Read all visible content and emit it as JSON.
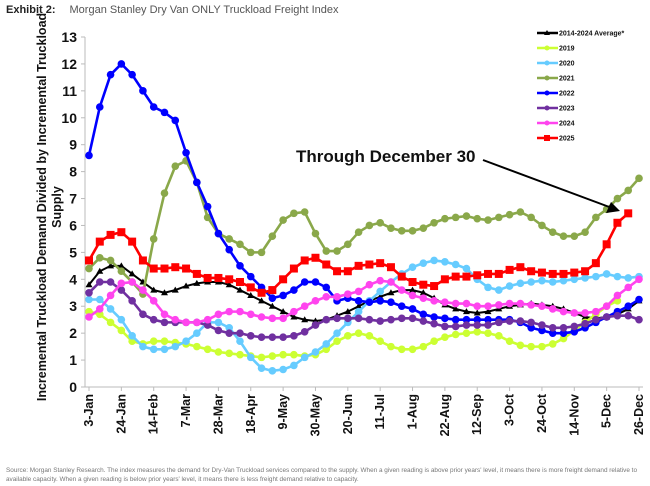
{
  "header": {
    "exhibit": "Exhibit 2:",
    "title": "Morgan Stanley Dry Van ONLY Truckload Freight Index"
  },
  "footer": {
    "source": "Source: Morgan Stanley Research. The index measures the demand for Dry-Van Truckload services compared to the supply. When a given reading is above prior years' level, it means there is more freight demand relative to available capacity. When a given reading is below prior years' level, it means there is less freight demand relative to capacity."
  },
  "chart_data": {
    "type": "line",
    "title": "Morgan Stanley Dry Van ONLY Truckload Freight Index",
    "xlabel": "",
    "ylabel": "Incremental Truckload Demand Divided by Incremental Truckload Supply",
    "ylim": [
      0,
      13
    ],
    "yticks": [
      "0",
      "1",
      "2",
      "3",
      "4",
      "5",
      "6",
      "7",
      "8",
      "9",
      "10",
      "11",
      "12",
      "13"
    ],
    "xticks": [
      "3-Jan",
      "24-Jan",
      "14-Feb",
      "7-Mar",
      "28-Mar",
      "18-Apr",
      "9-May",
      "30-May",
      "20-Jun",
      "11-Jul",
      "1-Aug",
      "22-Aug",
      "12-Sep",
      "3-Oct",
      "24-Oct",
      "14-Nov",
      "5-Dec",
      "26-Dec"
    ],
    "weeks": 52,
    "grid": false,
    "legend_position": "top-right",
    "annotation": "Through December 30",
    "series": [
      {
        "name": "2014-2024 Average*",
        "color": "#000000",
        "marker": "triangle",
        "values": [
          3.8,
          4.3,
          4.5,
          4.5,
          4.2,
          3.9,
          3.6,
          3.5,
          3.6,
          3.75,
          3.85,
          3.9,
          3.9,
          3.8,
          3.6,
          3.4,
          3.2,
          3.0,
          2.8,
          2.6,
          2.5,
          2.45,
          2.5,
          2.65,
          2.8,
          3.0,
          3.2,
          3.35,
          3.5,
          3.6,
          3.6,
          3.5,
          3.3,
          3.05,
          2.9,
          2.8,
          2.75,
          2.8,
          2.9,
          3.0,
          3.05,
          3.1,
          3.05,
          3.0,
          2.9,
          2.75,
          2.6,
          2.55,
          2.6,
          2.7,
          2.9,
          3.2,
          3.4,
          3.6,
          3.75
        ]
      },
      {
        "name": "2019",
        "color": "#ccff33",
        "marker": "circle",
        "values": [
          2.8,
          2.7,
          2.4,
          2.1,
          1.7,
          1.6,
          1.7,
          1.7,
          1.65,
          1.6,
          1.5,
          1.4,
          1.3,
          1.25,
          1.2,
          1.15,
          1.1,
          1.15,
          1.2,
          1.2,
          1.15,
          1.2,
          1.4,
          1.7,
          1.9,
          2.0,
          1.9,
          1.7,
          1.5,
          1.4,
          1.4,
          1.5,
          1.7,
          1.85,
          1.95,
          2.0,
          2.05,
          2.0,
          1.9,
          1.7,
          1.55,
          1.5,
          1.5,
          1.6,
          1.8,
          2.1,
          2.4,
          2.7,
          3.0,
          3.2
        ]
      },
      {
        "name": "2020",
        "color": "#66ccff",
        "marker": "circle",
        "values": [
          3.25,
          3.25,
          2.9,
          2.5,
          1.9,
          1.5,
          1.4,
          1.4,
          1.5,
          1.7,
          2.0,
          2.4,
          2.4,
          2.2,
          1.7,
          1.1,
          0.7,
          0.6,
          0.65,
          0.8,
          1.1,
          1.3,
          1.6,
          2.0,
          2.4,
          2.8,
          3.2,
          3.55,
          3.9,
          4.2,
          4.45,
          4.6,
          4.7,
          4.65,
          4.55,
          4.4,
          4.0,
          3.7,
          3.6,
          3.75,
          3.85,
          3.9,
          3.95,
          3.9,
          3.95,
          4.0,
          4.05,
          4.1,
          4.2,
          4.1,
          4.05,
          4.1
        ]
      },
      {
        "name": "2021",
        "color": "#8aa84a",
        "marker": "circle",
        "values": [
          4.4,
          4.8,
          4.7,
          4.3,
          3.9,
          3.45,
          5.5,
          7.2,
          8.2,
          8.4,
          7.6,
          6.3,
          5.7,
          5.5,
          5.3,
          5.0,
          5.0,
          5.6,
          6.2,
          6.45,
          6.5,
          5.7,
          5.05,
          5.05,
          5.3,
          5.75,
          6.0,
          6.1,
          5.9,
          5.8,
          5.8,
          5.9,
          6.1,
          6.25,
          6.3,
          6.35,
          6.25,
          6.2,
          6.3,
          6.4,
          6.5,
          6.3,
          6.0,
          5.75,
          5.6,
          5.6,
          5.75,
          6.3,
          6.6,
          7.0,
          7.3,
          7.75
        ]
      },
      {
        "name": "2022",
        "color": "#0000ff",
        "marker": "circle",
        "values": [
          8.6,
          10.4,
          11.6,
          12.0,
          11.6,
          11.0,
          10.4,
          10.2,
          9.9,
          8.7,
          7.6,
          6.7,
          5.7,
          5.1,
          4.5,
          4.1,
          3.7,
          3.3,
          3.4,
          3.6,
          3.9,
          3.9,
          3.7,
          3.2,
          3.3,
          3.2,
          3.15,
          3.2,
          3.15,
          3.0,
          2.9,
          2.7,
          2.6,
          2.55,
          2.5,
          2.5,
          2.5,
          2.5,
          2.5,
          2.5,
          2.4,
          2.2,
          2.1,
          2.0,
          2.0,
          2.05,
          2.2,
          2.4,
          2.6,
          2.8,
          3.0,
          3.25
        ]
      },
      {
        "name": "2023",
        "color": "#7030a0",
        "marker": "circle",
        "values": [
          3.5,
          3.9,
          3.9,
          3.6,
          3.2,
          2.7,
          2.5,
          2.4,
          2.4,
          2.4,
          2.4,
          2.3,
          2.1,
          2.0,
          2.0,
          1.9,
          1.85,
          1.85,
          1.85,
          1.9,
          2.05,
          2.3,
          2.5,
          2.55,
          2.55,
          2.55,
          2.5,
          2.45,
          2.5,
          2.55,
          2.55,
          2.45,
          2.35,
          2.25,
          2.25,
          2.3,
          2.3,
          2.3,
          2.4,
          2.45,
          2.45,
          2.4,
          2.3,
          2.2,
          2.2,
          2.25,
          2.35,
          2.5,
          2.6,
          2.65,
          2.65,
          2.5
        ]
      },
      {
        "name": "2024",
        "color": "#ff44ee",
        "marker": "circle",
        "values": [
          2.6,
          2.9,
          3.4,
          3.85,
          3.9,
          3.6,
          3.2,
          2.7,
          2.5,
          2.4,
          2.4,
          2.5,
          2.7,
          2.8,
          2.8,
          2.7,
          2.6,
          2.55,
          2.55,
          2.8,
          3.0,
          3.2,
          3.35,
          3.35,
          3.45,
          3.55,
          3.8,
          3.95,
          3.9,
          3.6,
          3.4,
          3.3,
          3.2,
          3.15,
          3.1,
          3.1,
          3.0,
          3.0,
          3.05,
          3.1,
          3.1,
          3.05,
          3.0,
          2.9,
          2.8,
          2.75,
          2.75,
          2.8,
          3.0,
          3.4,
          3.7,
          4.0,
          4.3
        ]
      },
      {
        "name": "2025",
        "color": "#ff0000",
        "marker": "square",
        "values": [
          4.7,
          5.4,
          5.65,
          5.75,
          5.4,
          4.7,
          4.4,
          4.4,
          4.45,
          4.4,
          4.2,
          4.05,
          4.05,
          4.0,
          3.9,
          3.7,
          3.5,
          3.6,
          4.0,
          4.4,
          4.7,
          4.8,
          4.55,
          4.3,
          4.3,
          4.5,
          4.55,
          4.6,
          4.45,
          4.1,
          3.9,
          3.8,
          3.75,
          4.0,
          4.1,
          4.1,
          4.15,
          4.2,
          4.2,
          4.35,
          4.45,
          4.3,
          4.25,
          4.2,
          4.2,
          4.25,
          4.3,
          4.6,
          5.3,
          6.1,
          6.45
        ]
      }
    ]
  }
}
